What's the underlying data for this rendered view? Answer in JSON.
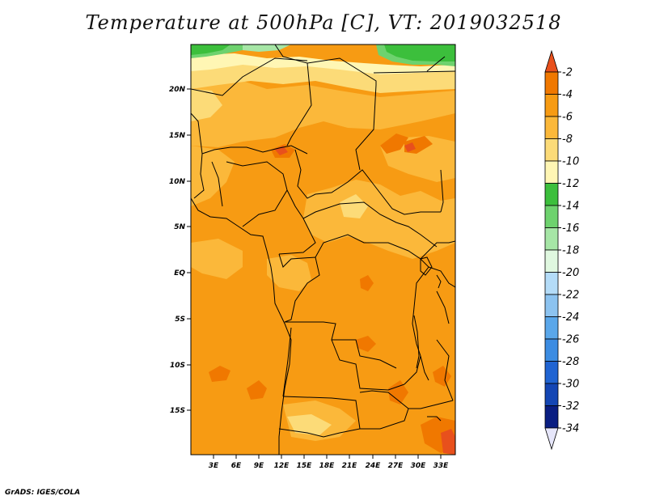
{
  "title": "Temperature at 500hPa [C], VT: 2019032518",
  "credit": "GrADS: IGES/COLA",
  "map": {
    "lat_labels": [
      "20N",
      "15N",
      "10N",
      "5N",
      "EQ",
      "5S",
      "10S",
      "15S"
    ],
    "lon_labels": [
      "3E",
      "6E",
      "9E",
      "12E",
      "15E",
      "18E",
      "21E",
      "24E",
      "27E",
      "30E",
      "33E"
    ]
  },
  "colorbar": {
    "labels": [
      "-2",
      "-4",
      "-6",
      "-8",
      "-10",
      "-12",
      "-14",
      "-16",
      "-18",
      "-20",
      "-22",
      "-24",
      "-26",
      "-28",
      "-30",
      "-32",
      "-34"
    ],
    "colors": [
      "#e8501c",
      "#f07800",
      "#f79b13",
      "#fbb83a",
      "#fcdb78",
      "#fff6b4",
      "#3cbf3c",
      "#6ed26e",
      "#a6e6a6",
      "#e0f8e0",
      "#b4dcf8",
      "#8cc3f0",
      "#5aa7ea",
      "#3c8ce2",
      "#2064d2",
      "#1446b4",
      "#0a1e82"
    ],
    "top_arrow_color": "#e8501c",
    "bottom_arrow_color": "#e6e6fa"
  }
}
